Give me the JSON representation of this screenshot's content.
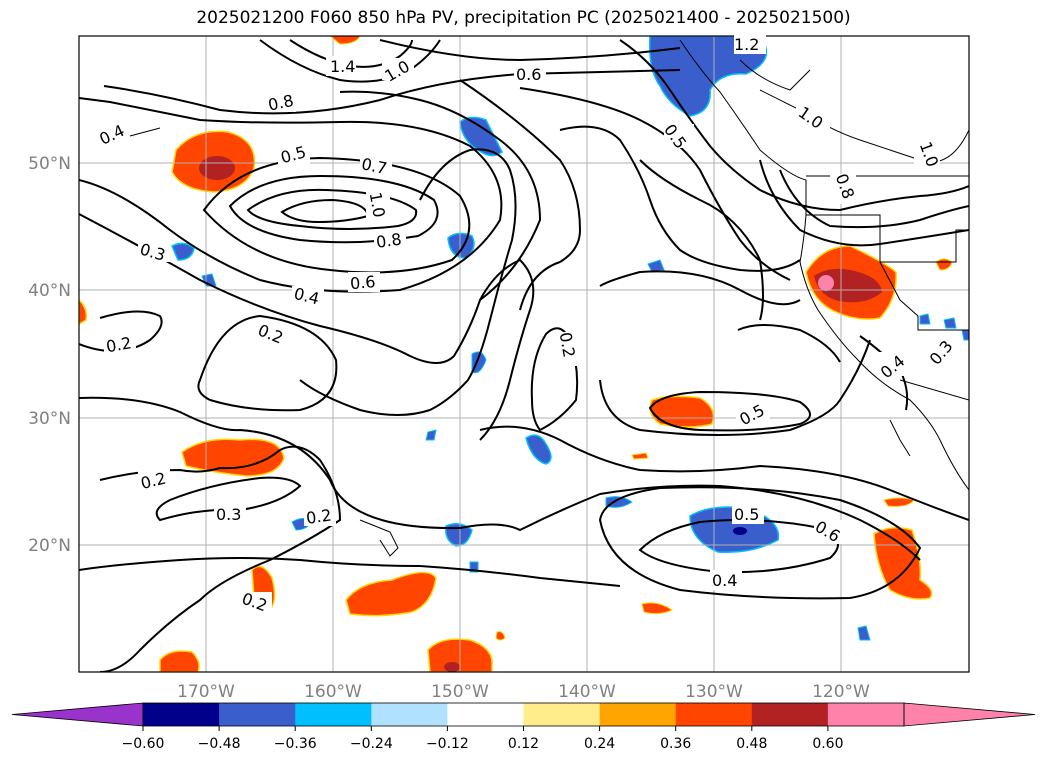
{
  "title": "2025021200 F060 850 hPa PV, precipitation PC (2025021400 - 2025021500)",
  "lat_labels": [
    "50°N",
    "40°N",
    "30°N",
    "20°N"
  ],
  "lon_labels": [
    "170°W",
    "160°W",
    "150°W",
    "140°W",
    "130°W",
    "120°W"
  ],
  "colorbar": {
    "ticks": [
      "−0.60",
      "−0.48",
      "−0.36",
      "−0.24",
      "−0.12",
      "0.12",
      "0.24",
      "0.36",
      "0.48",
      "0.60"
    ],
    "colors": [
      "#9a33cc",
      "#00008b",
      "#3a5fcd",
      "#00bfff",
      "#b0e2ff",
      "#ffffff",
      "#ffec8b",
      "#ffa500",
      "#ff4500",
      "#b22222",
      "#ff82ab",
      "#ff82ab"
    ],
    "under_color": "#9a33cc",
    "over_color": "#ff82ab"
  },
  "contour_labels": [
    {
      "id": "c1",
      "text": "1.4"
    },
    {
      "id": "c2",
      "text": "1.0"
    },
    {
      "id": "c3",
      "text": "0.8"
    },
    {
      "id": "c4",
      "text": "0.6"
    },
    {
      "id": "c5",
      "text": "1.2"
    },
    {
      "id": "c6",
      "text": "0.4"
    },
    {
      "id": "c7",
      "text": "0.5"
    },
    {
      "id": "c8",
      "text": "0.7"
    },
    {
      "id": "c9",
      "text": "1.0"
    },
    {
      "id": "c10",
      "text": "0.8"
    },
    {
      "id": "c11",
      "text": "0.6"
    },
    {
      "id": "c12",
      "text": "0.4"
    },
    {
      "id": "c13",
      "text": "0.3"
    },
    {
      "id": "c14",
      "text": "0.2"
    },
    {
      "id": "c15",
      "text": "0.2"
    },
    {
      "id": "c16",
      "text": "0.2"
    },
    {
      "id": "c17",
      "text": "0.5"
    },
    {
      "id": "c18",
      "text": "1.0"
    },
    {
      "id": "c19",
      "text": "0.8"
    },
    {
      "id": "c20",
      "text": "1.0"
    },
    {
      "id": "c21",
      "text": "0.4"
    },
    {
      "id": "c22",
      "text": "0.3"
    },
    {
      "id": "c23",
      "text": "0.5"
    },
    {
      "id": "c24",
      "text": "0.2"
    },
    {
      "id": "c25",
      "text": "0.3"
    },
    {
      "id": "c26",
      "text": "0.2"
    },
    {
      "id": "c27",
      "text": "0.5"
    },
    {
      "id": "c28",
      "text": "0.6"
    },
    {
      "id": "c29",
      "text": "0.4"
    },
    {
      "id": "c30",
      "text": "0.2"
    }
  ],
  "colors": {
    "contour": "#000000",
    "grid": "#b0b0b0",
    "tick_text": "#808080"
  }
}
